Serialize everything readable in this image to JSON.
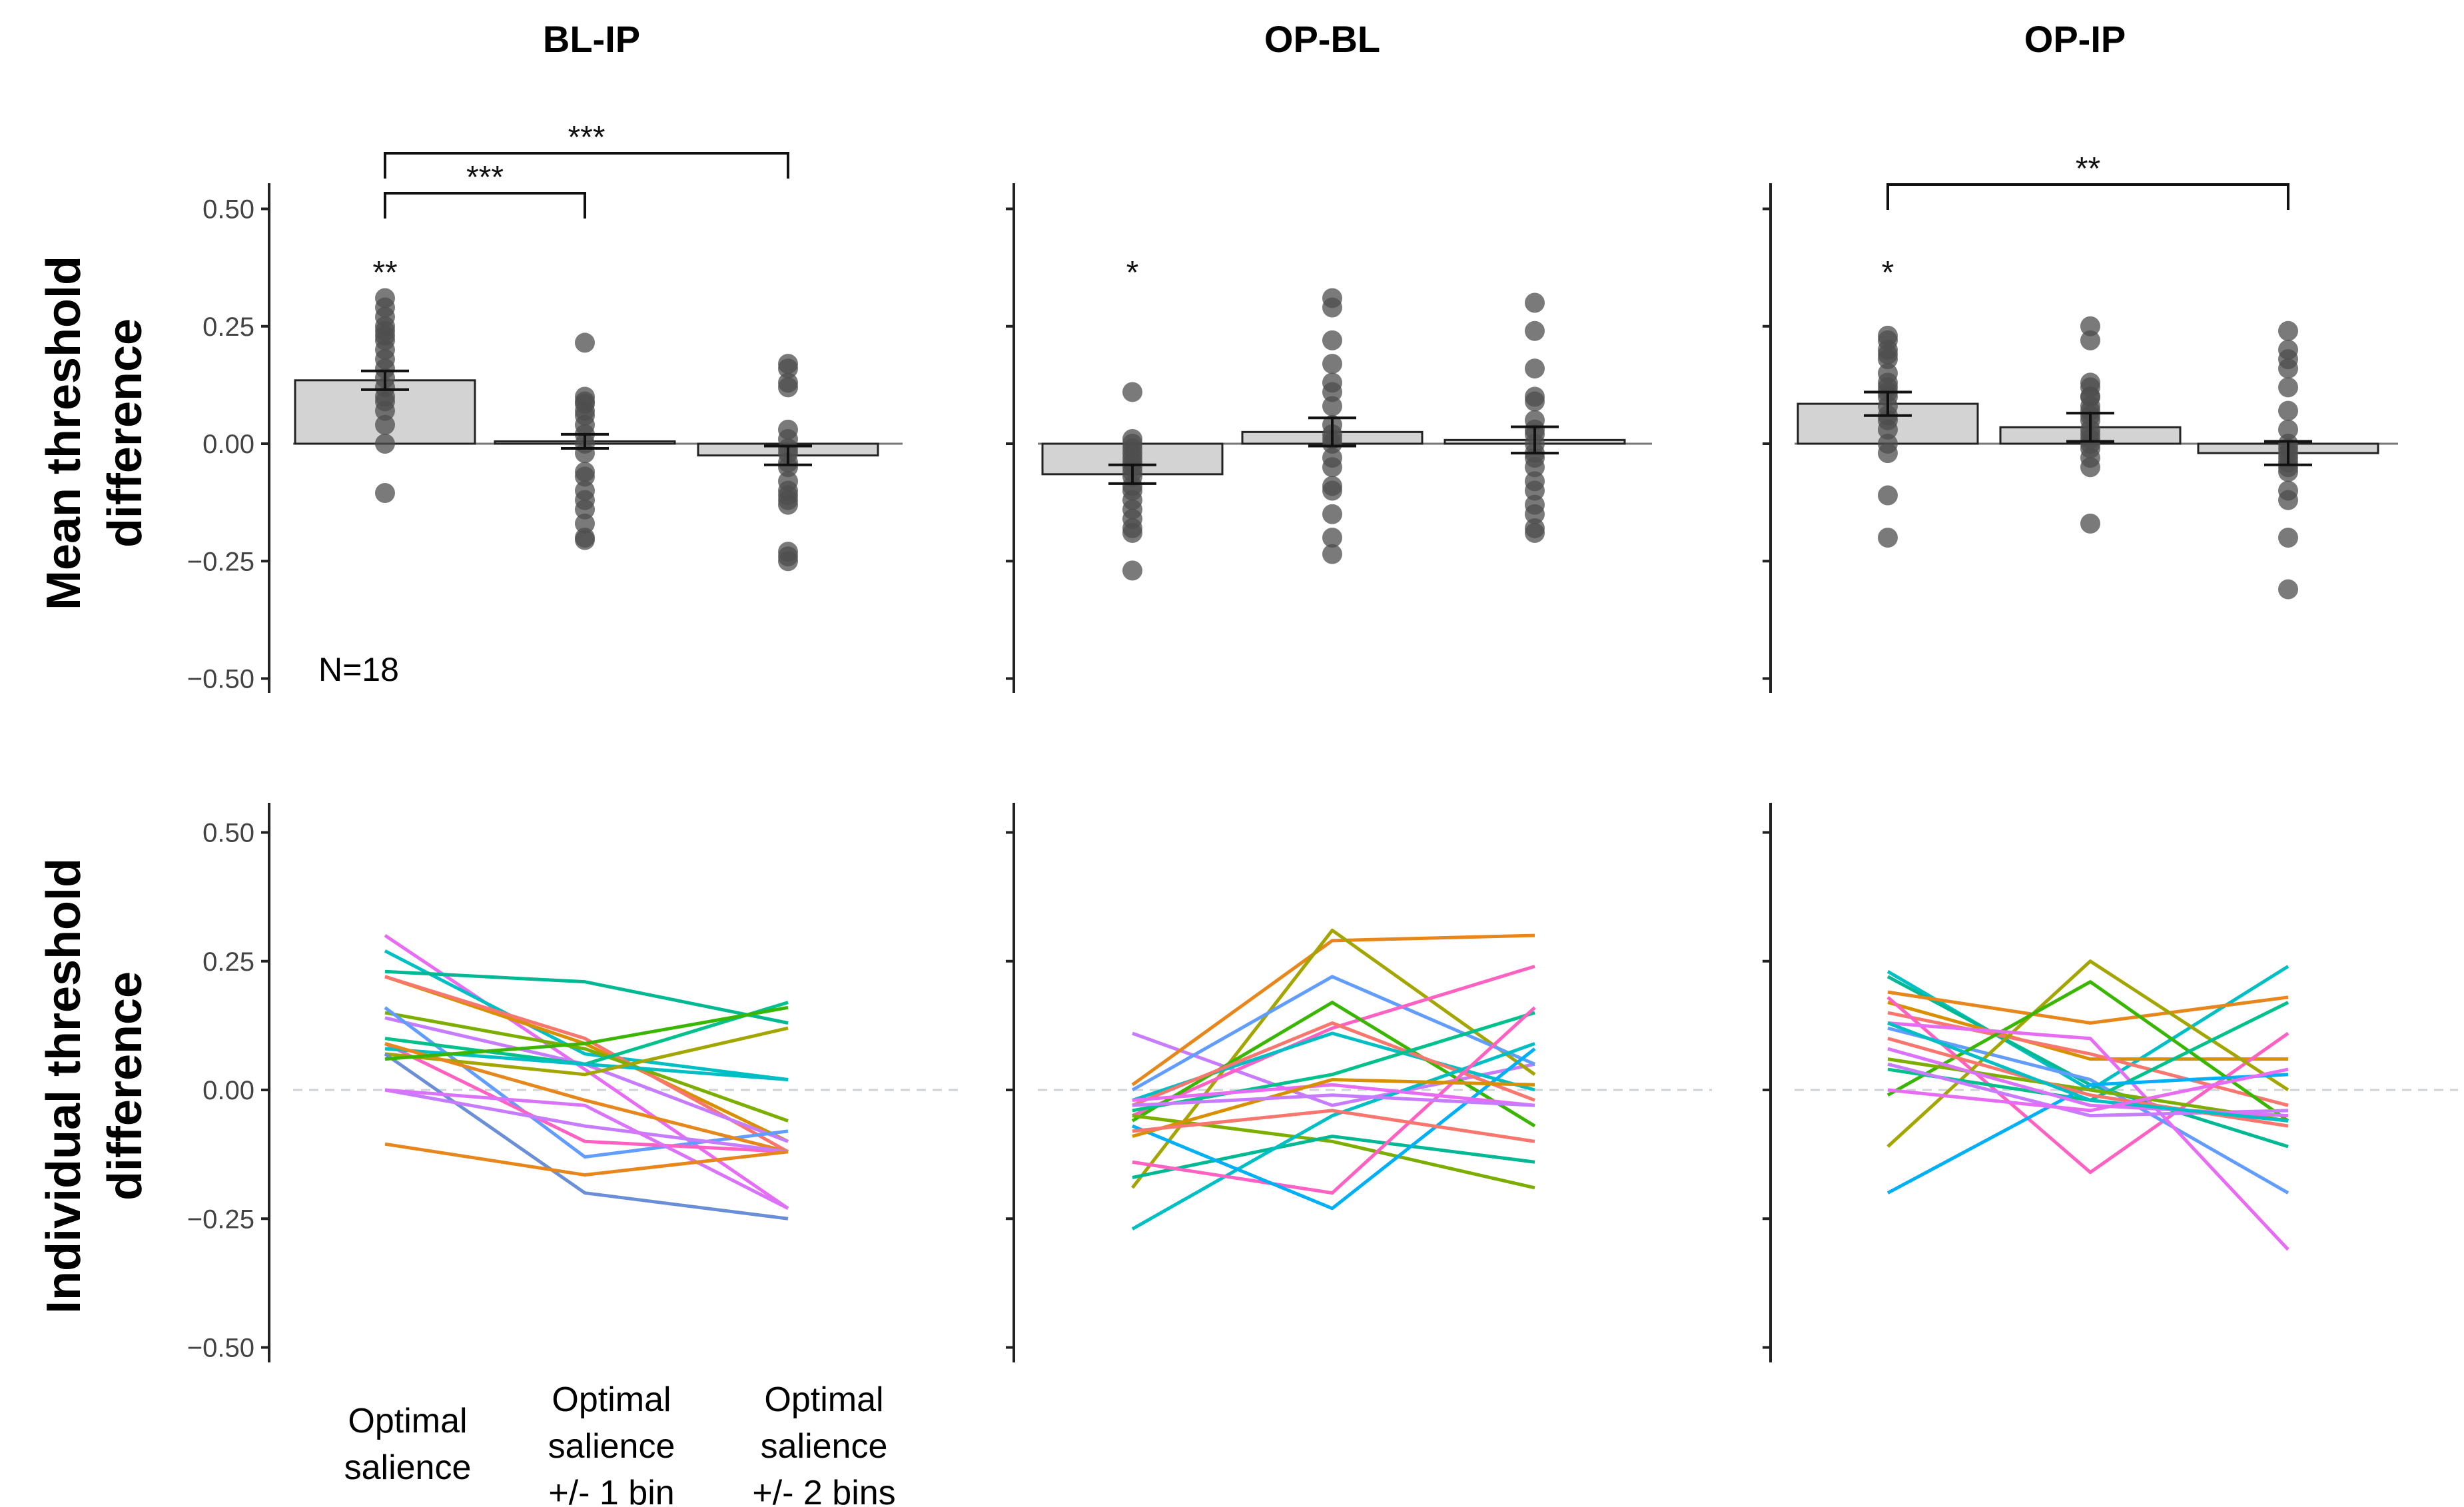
{
  "figure": {
    "ylabel_top": [
      "Mean threshold",
      "difference"
    ],
    "ylabel_bottom": [
      "Individual threshold",
      "difference"
    ],
    "n_label": "N=18",
    "y_ticks": [
      "0.50",
      "0.25",
      "0.00",
      "−0.25",
      "−0.50"
    ],
    "x_categories": [
      [
        "Optimal",
        "salience"
      ],
      [
        "Optimal",
        "salience",
        "+/- 1 bin"
      ],
      [
        "Optimal",
        "salience",
        "+/- 2 bins"
      ]
    ]
  },
  "chart_data": [
    {
      "type": "bar",
      "panel": "BL-IP",
      "title": "BL-IP",
      "ylabel": "Mean threshold difference",
      "ylim": [
        -0.55,
        0.55
      ],
      "categories": [
        "Optimal salience",
        "Optimal salience +/- 1 bin",
        "Optimal salience +/- 2 bins"
      ],
      "means": [
        0.135,
        0.005,
        -0.025
      ],
      "se": [
        0.02,
        0.015,
        0.02
      ],
      "points": [
        [
          0.31,
          0.29,
          0.27,
          0.25,
          0.24,
          0.23,
          0.22,
          0.2,
          0.18,
          0.16,
          0.14,
          0.12,
          0.1,
          0.09,
          0.07,
          0.04,
          0.0,
          -0.105
        ],
        [
          0.215,
          0.1,
          0.09,
          0.085,
          0.07,
          0.06,
          0.04,
          0.02,
          0.0,
          -0.02,
          -0.06,
          -0.07,
          -0.1,
          -0.12,
          -0.14,
          -0.17,
          -0.2,
          -0.205
        ],
        [
          0.17,
          0.16,
          0.13,
          0.12,
          0.03,
          0.01,
          -0.01,
          -0.02,
          -0.04,
          -0.05,
          -0.08,
          -0.1,
          -0.11,
          -0.12,
          -0.13,
          -0.23,
          -0.24,
          -0.25
        ]
      ],
      "category_stars": [
        "**",
        "",
        ""
      ],
      "comparisons": [
        {
          "from": 0,
          "to": 1,
          "label": "***"
        },
        {
          "from": 0,
          "to": 2,
          "label": "***"
        }
      ]
    },
    {
      "type": "bar",
      "panel": "OP-BL",
      "title": "OP-BL",
      "ylabel": "Mean threshold difference",
      "ylim": [
        -0.55,
        0.55
      ],
      "categories": [
        "Optimal salience",
        "Optimal salience +/- 1 bin",
        "Optimal salience +/- 2 bins"
      ],
      "means": [
        -0.065,
        0.025,
        0.008
      ],
      "se": [
        0.02,
        0.03,
        0.028
      ],
      "points": [
        [
          0.11,
          0.01,
          0.0,
          -0.01,
          -0.02,
          -0.03,
          -0.04,
          -0.05,
          -0.06,
          -0.07,
          -0.09,
          -0.1,
          -0.12,
          -0.14,
          -0.16,
          -0.18,
          -0.19,
          -0.27
        ],
        [
          0.31,
          0.29,
          0.22,
          0.17,
          0.13,
          0.11,
          0.08,
          0.04,
          0.02,
          0.0,
          0.01,
          -0.03,
          -0.05,
          -0.09,
          -0.1,
          -0.15,
          -0.2,
          -0.235
        ],
        [
          0.3,
          0.24,
          0.16,
          0.1,
          0.09,
          0.05,
          0.03,
          0.02,
          0.0,
          -0.02,
          -0.03,
          -0.05,
          -0.08,
          -0.1,
          -0.13,
          -0.15,
          -0.18,
          -0.19
        ]
      ],
      "category_stars": [
        "*",
        "",
        ""
      ],
      "comparisons": []
    },
    {
      "type": "bar",
      "panel": "OP-IP",
      "title": "OP-IP",
      "ylabel": "Mean threshold difference",
      "ylim": [
        -0.55,
        0.55
      ],
      "categories": [
        "Optimal salience",
        "Optimal salience +/- 1 bin",
        "Optimal salience +/- 2 bins"
      ],
      "means": [
        0.085,
        0.035,
        -0.02
      ],
      "se": [
        0.025,
        0.03,
        0.025
      ],
      "points": [
        [
          0.23,
          0.22,
          0.2,
          0.19,
          0.18,
          0.15,
          0.13,
          0.12,
          0.11,
          0.1,
          0.08,
          0.06,
          0.05,
          0.03,
          0.0,
          -0.02,
          -0.11,
          -0.2
        ],
        [
          0.25,
          0.22,
          0.13,
          0.12,
          0.1,
          0.1,
          0.08,
          0.07,
          0.06,
          0.05,
          0.03,
          0.02,
          0.01,
          0.0,
          -0.01,
          -0.03,
          -0.05,
          -0.17
        ],
        [
          0.24,
          0.2,
          0.18,
          0.16,
          0.12,
          0.07,
          0.03,
          0.0,
          -0.01,
          -0.02,
          -0.03,
          -0.04,
          -0.05,
          -0.06,
          -0.1,
          -0.12,
          -0.2,
          -0.31
        ]
      ],
      "category_stars": [
        "*",
        "",
        ""
      ],
      "comparisons": [
        {
          "from": 0,
          "to": 2,
          "label": "**"
        }
      ]
    },
    {
      "type": "line",
      "panel": "BL-IP individual",
      "ylabel": "Individual threshold difference",
      "ylim": [
        -0.55,
        0.55
      ],
      "x": [
        0,
        1,
        2
      ],
      "series": [
        {
          "color": "#e76bf3",
          "values": [
            0.3,
            0.04,
            -0.23
          ]
        },
        {
          "color": "#00bfc4",
          "values": [
            0.27,
            0.07,
            0.02
          ]
        },
        {
          "color": "#00b894",
          "values": [
            0.23,
            0.21,
            0.13
          ]
        },
        {
          "color": "#d89000",
          "values": [
            0.22,
            0.09,
            -0.1
          ]
        },
        {
          "color": "#f8766d",
          "values": [
            0.22,
            0.1,
            -0.12
          ]
        },
        {
          "color": "#7cae00",
          "values": [
            0.15,
            0.08,
            -0.06
          ]
        },
        {
          "color": "#c77cff",
          "values": [
            0.14,
            0.05,
            -0.1
          ]
        },
        {
          "color": "#619cff",
          "values": [
            0.16,
            -0.13,
            -0.08
          ]
        },
        {
          "color": "#00c08b",
          "values": [
            0.1,
            0.05,
            0.17
          ]
        },
        {
          "color": "#ff61c3",
          "values": [
            0.09,
            -0.1,
            -0.12
          ]
        },
        {
          "color": "#00bfc4",
          "values": [
            0.08,
            0.05,
            0.02
          ]
        },
        {
          "color": "#a3a500",
          "values": [
            0.07,
            0.03,
            0.12
          ]
        },
        {
          "color": "#6b8fd6",
          "values": [
            0.07,
            -0.2,
            -0.25
          ]
        },
        {
          "color": "#e7861b",
          "values": [
            0.09,
            -0.02,
            -0.12
          ]
        },
        {
          "color": "#c77cff",
          "values": [
            0.0,
            -0.07,
            -0.12
          ]
        },
        {
          "color": "#db72fb",
          "values": [
            0.0,
            -0.03,
            -0.23
          ]
        },
        {
          "color": "#39b600",
          "values": [
            0.06,
            0.09,
            0.16
          ]
        },
        {
          "color": "#e7861b",
          "values": [
            -0.105,
            -0.165,
            -0.12
          ]
        }
      ]
    },
    {
      "type": "line",
      "panel": "OP-BL individual",
      "ylabel": "Individual threshold difference",
      "ylim": [
        -0.55,
        0.55
      ],
      "x": [
        0,
        1,
        2
      ],
      "series": [
        {
          "color": "#c77cff",
          "values": [
            0.11,
            -0.03,
            0.05
          ]
        },
        {
          "color": "#e7861b",
          "values": [
            0.01,
            0.29,
            0.3
          ]
        },
        {
          "color": "#a3a500",
          "values": [
            -0.19,
            0.31,
            0.03
          ]
        },
        {
          "color": "#619cff",
          "values": [
            0.0,
            0.22,
            0.05
          ]
        },
        {
          "color": "#ff61c3",
          "values": [
            -0.05,
            0.12,
            0.24
          ]
        },
        {
          "color": "#00bfc4",
          "values": [
            -0.02,
            0.11,
            0.0
          ]
        },
        {
          "color": "#39b600",
          "values": [
            -0.06,
            0.17,
            -0.07
          ]
        },
        {
          "color": "#f8766d",
          "values": [
            -0.03,
            0.13,
            -0.02
          ]
        },
        {
          "color": "#00c08b",
          "values": [
            -0.04,
            0.03,
            0.15
          ]
        },
        {
          "color": "#7cae00",
          "values": [
            -0.05,
            -0.1,
            -0.19
          ]
        },
        {
          "color": "#00b894",
          "values": [
            -0.17,
            -0.09,
            -0.14
          ]
        },
        {
          "color": "#00bfc4",
          "values": [
            -0.27,
            -0.05,
            0.09
          ]
        },
        {
          "color": "#ff61c3",
          "values": [
            -0.14,
            -0.2,
            0.16
          ]
        },
        {
          "color": "#00b0f6",
          "values": [
            -0.07,
            -0.23,
            0.08
          ]
        },
        {
          "color": "#e76bf3",
          "values": [
            -0.02,
            0.01,
            -0.03
          ]
        },
        {
          "color": "#d89000",
          "values": [
            -0.09,
            0.02,
            0.01
          ]
        },
        {
          "color": "#f8766d",
          "values": [
            -0.08,
            -0.04,
            -0.1
          ]
        },
        {
          "color": "#c77cff",
          "values": [
            -0.03,
            -0.01,
            -0.03
          ]
        }
      ]
    },
    {
      "type": "line",
      "panel": "OP-IP individual",
      "ylabel": "Individual threshold difference",
      "ylim": [
        -0.55,
        0.55
      ],
      "x": [
        0,
        1,
        2
      ],
      "series": [
        {
          "color": "#00bfc4",
          "values": [
            0.23,
            0.0,
            0.24
          ]
        },
        {
          "color": "#00b894",
          "values": [
            0.22,
            0.01,
            -0.11
          ]
        },
        {
          "color": "#e7861b",
          "values": [
            0.19,
            0.13,
            0.18
          ]
        },
        {
          "color": "#d89000",
          "values": [
            0.17,
            0.06,
            0.06
          ]
        },
        {
          "color": "#f8766d",
          "values": [
            0.15,
            0.07,
            -0.03
          ]
        },
        {
          "color": "#ff61c3",
          "values": [
            0.18,
            -0.16,
            0.11
          ]
        },
        {
          "color": "#619cff",
          "values": [
            0.12,
            0.02,
            -0.2
          ]
        },
        {
          "color": "#a3a500",
          "values": [
            -0.11,
            0.25,
            0.0
          ]
        },
        {
          "color": "#39b600",
          "values": [
            -0.01,
            0.21,
            -0.06
          ]
        },
        {
          "color": "#e76bf3",
          "values": [
            0.13,
            0.1,
            -0.31
          ]
        },
        {
          "color": "#00c08b",
          "values": [
            0.04,
            -0.02,
            0.17
          ]
        },
        {
          "color": "#00b0f6",
          "values": [
            -0.2,
            0.01,
            0.03
          ]
        },
        {
          "color": "#c77cff",
          "values": [
            0.05,
            -0.05,
            -0.04
          ]
        },
        {
          "color": "#7cae00",
          "values": [
            0.06,
            0.0,
            -0.06
          ]
        },
        {
          "color": "#f8766d",
          "values": [
            0.1,
            -0.01,
            -0.07
          ]
        },
        {
          "color": "#db72fb",
          "values": [
            0.08,
            -0.03,
            -0.05
          ]
        },
        {
          "color": "#00bfc4",
          "values": [
            0.13,
            -0.02,
            -0.06
          ]
        },
        {
          "color": "#e76bf3",
          "values": [
            0.0,
            -0.04,
            0.04
          ]
        }
      ]
    }
  ]
}
